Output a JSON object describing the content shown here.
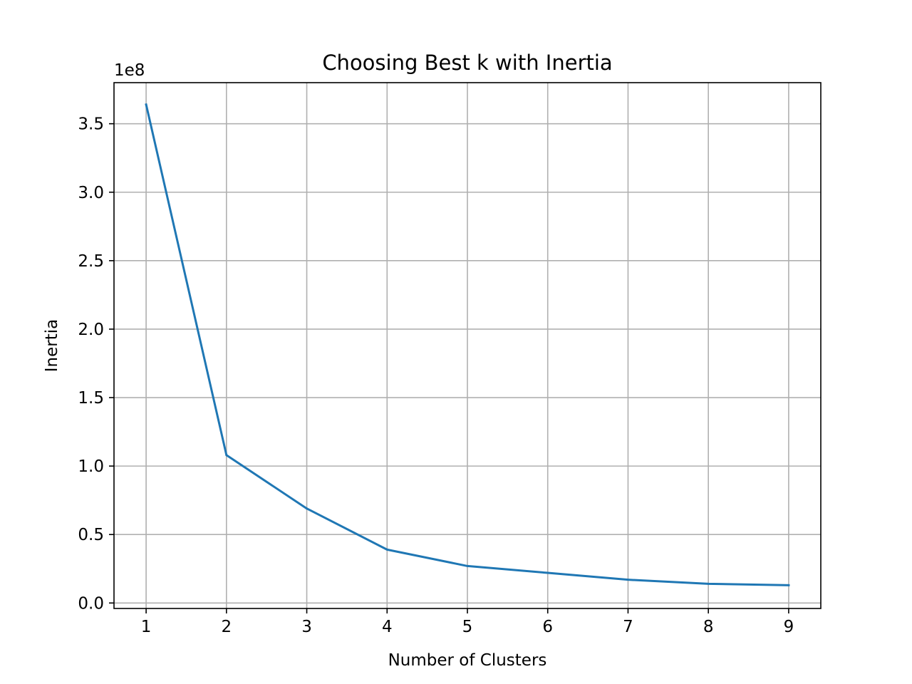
{
  "chart_data": {
    "type": "line",
    "title": "Choosing Best k with Inertia",
    "xlabel": "Number of Clusters",
    "ylabel": "Inertia",
    "y_offset_label": "1e8",
    "x": [
      1,
      2,
      3,
      4,
      5,
      6,
      7,
      8,
      9
    ],
    "series": [
      {
        "values": [
          364000000,
          108000000,
          69000000,
          39000000,
          27000000,
          22000000,
          17000000,
          14000000,
          13000000
        ],
        "color": "#1f77b4"
      }
    ],
    "xticks": [
      1,
      2,
      3,
      4,
      5,
      6,
      7,
      8,
      9
    ],
    "xtick_labels": [
      "1",
      "2",
      "3",
      "4",
      "5",
      "6",
      "7",
      "8",
      "9"
    ],
    "yticks": [
      0,
      50000000,
      100000000,
      150000000,
      200000000,
      250000000,
      300000000,
      350000000
    ],
    "ytick_labels": [
      "0.0",
      "0.5",
      "1.0",
      "1.5",
      "2.0",
      "2.5",
      "3.0",
      "3.5"
    ],
    "xlim": [
      0.6,
      9.4
    ],
    "ylim": [
      -4000000,
      380000000
    ],
    "grid": true,
    "legend": "none"
  }
}
